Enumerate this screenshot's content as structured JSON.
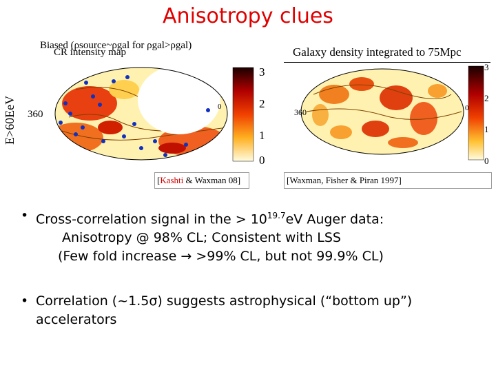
{
  "title": "Anisotropy clues",
  "left_panel": {
    "caption_line1": "Biased (ρsource~ρgal for ρgal>ρgal)",
    "caption_line2": "CR intensity map",
    "y_axis_label": "E>60EeV",
    "lon_left": "360",
    "lon_right": "0",
    "colorbar_ticks": [
      "3",
      "2",
      "1",
      "0"
    ],
    "reference_prefix": "[",
    "reference_author": "Kashti",
    "reference_rest": " & Waxman 08]"
  },
  "right_panel": {
    "caption": "Galaxy density integrated to 75Mpc",
    "lon_left": "360",
    "lon_right": "0",
    "colorbar_ticks": [
      "3",
      "2",
      "1",
      "0"
    ],
    "reference": "[Waxman, Fisher & Piran 1997]"
  },
  "bullets": {
    "b1_line1_pre": "Cross-correlation signal in the > 10",
    "b1_line1_sup": "19.7",
    "b1_line1_post": "eV Auger data:",
    "b1_line2": "Anisotropy @ 98% CL; Consistent with LSS",
    "b1_line3": "(Few fold increase → >99% CL, but not 99.9% CL)",
    "b2_line1": "Correlation (~1.5σ) suggests astrophysical (“bottom up”)",
    "b2_line2": "accelerators",
    "bullet_symbol": "•"
  },
  "colors": {
    "title": "#e00000",
    "event_markers": "#1030c0"
  }
}
